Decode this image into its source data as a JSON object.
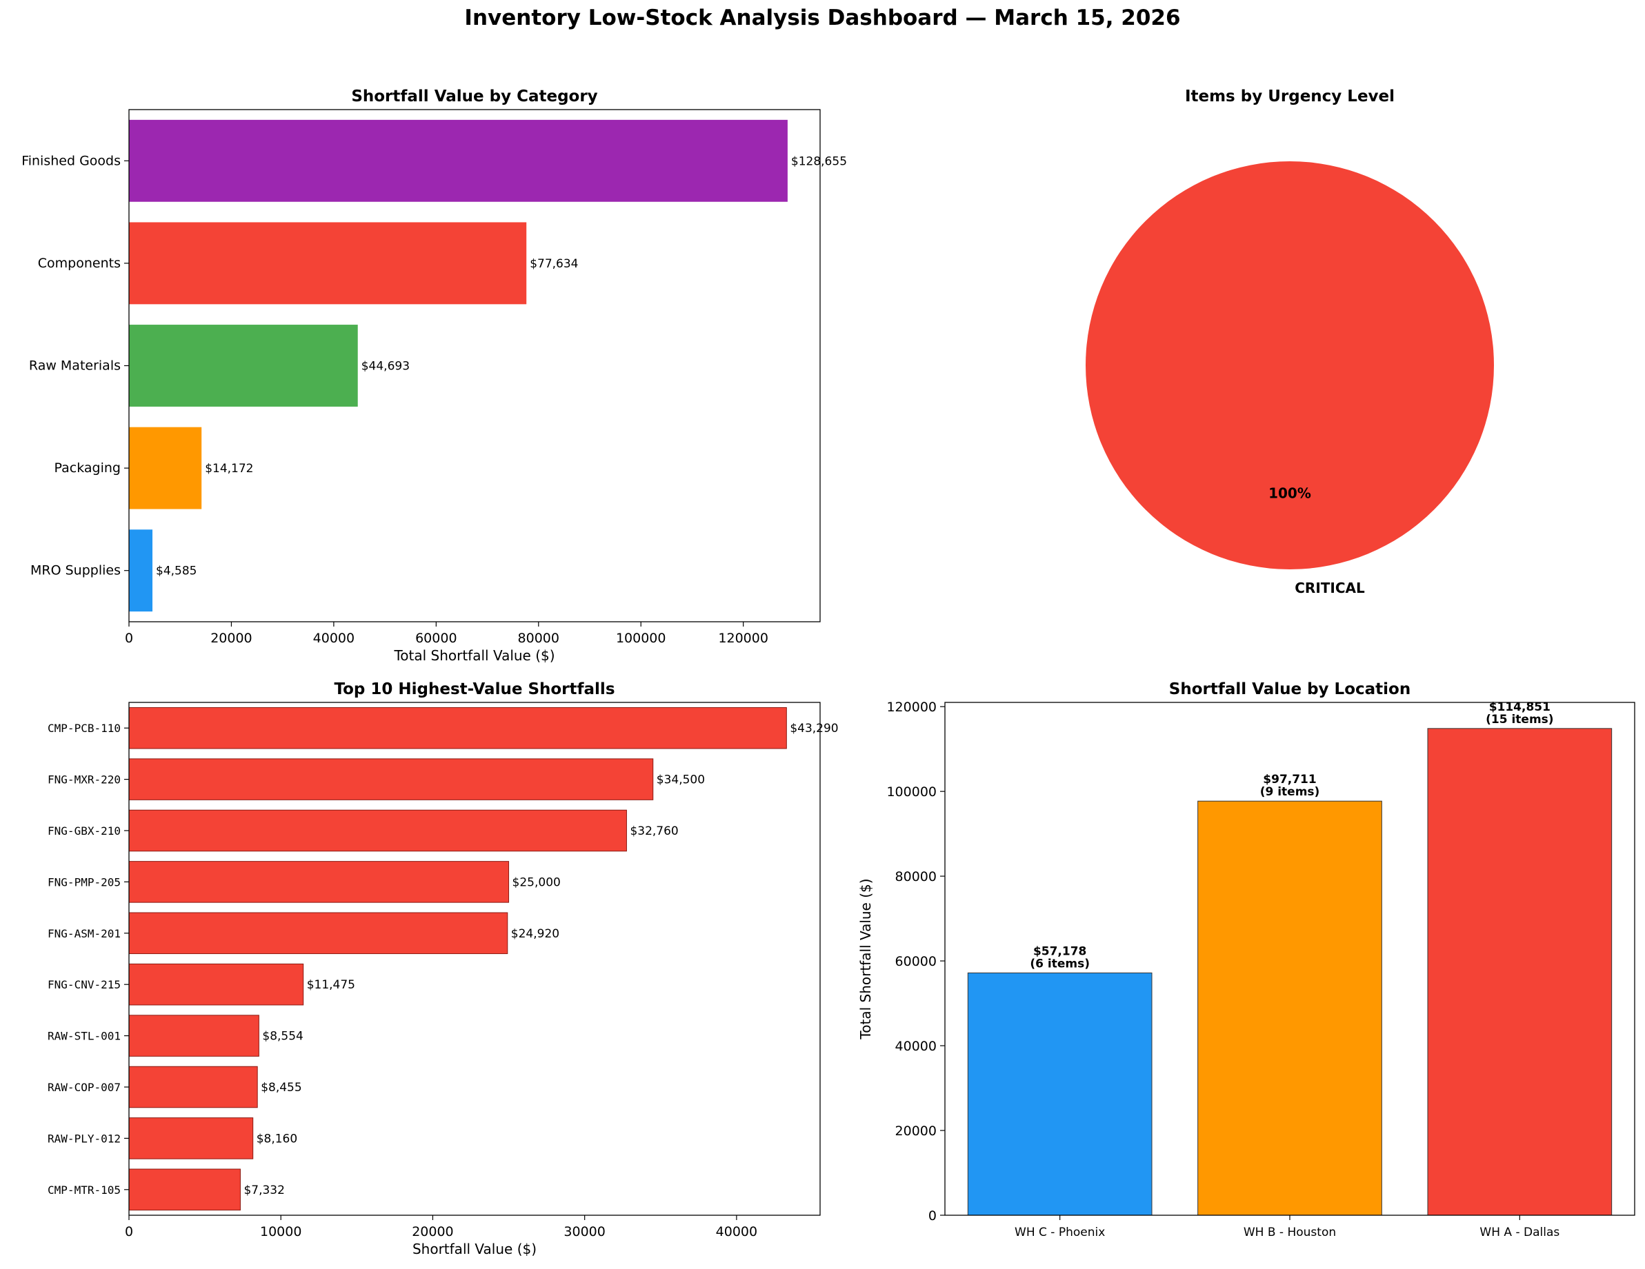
{
  "title": "Inventory Low-Stock Analysis Dashboard — March 15, 2026",
  "chart_data": [
    {
      "type": "bar",
      "orientation": "horizontal",
      "title": "Shortfall Value by Category",
      "xlabel": "Total Shortfall Value ($)",
      "ylabel": "",
      "xlim": [
        0,
        135000
      ],
      "xticks": [
        "0",
        "20000",
        "40000",
        "60000",
        "80000",
        "100000",
        "120000"
      ],
      "categories": [
        "Finished Goods",
        "Components",
        "Raw Materials",
        "Packaging",
        "MRO Supplies"
      ],
      "values": [
        128655,
        77634,
        44693,
        14172,
        4585
      ],
      "labels": [
        "$128,655",
        "$77,634",
        "$44,693",
        "$14,172",
        "$4,585"
      ],
      "colors": [
        "#9C27B0",
        "#F44336",
        "#4CAF50",
        "#FF9800",
        "#2196F3"
      ]
    },
    {
      "type": "pie",
      "title": "Items by Urgency Level",
      "categories": [
        "CRITICAL"
      ],
      "values": [
        100
      ],
      "pct_labels": [
        "100%"
      ],
      "colors": [
        "#F44336"
      ]
    },
    {
      "type": "bar",
      "orientation": "horizontal",
      "title": "Top 10 Highest-Value Shortfalls",
      "xlabel": "Shortfall Value ($)",
      "ylabel": "",
      "xlim": [
        0,
        45500
      ],
      "xticks": [
        "0",
        "10000",
        "20000",
        "30000",
        "40000"
      ],
      "categories": [
        "CMP-PCB-110",
        "FNG-MXR-220",
        "FNG-GBX-210",
        "FNG-PMP-205",
        "FNG-ASM-201",
        "FNG-CNV-215",
        "RAW-STL-001",
        "RAW-COP-007",
        "RAW-PLY-012",
        "CMP-MTR-105"
      ],
      "values": [
        43290,
        34500,
        32760,
        25000,
        24920,
        11475,
        8554,
        8455,
        8160,
        7332
      ],
      "labels": [
        "$43,290",
        "$34,500",
        "$32,760",
        "$25,000",
        "$24,920",
        "$11,475",
        "$8,554",
        "$8,455",
        "$8,160",
        "$7,332"
      ],
      "colors": [
        "#F44336"
      ]
    },
    {
      "type": "bar",
      "orientation": "vertical",
      "title": "Shortfall Value by Location",
      "xlabel": "",
      "ylabel": "Total Shortfall Value ($)",
      "ylim": [
        0,
        121000
      ],
      "yticks": [
        "0",
        "20000",
        "40000",
        "60000",
        "80000",
        "100000",
        "120000"
      ],
      "categories": [
        "WH C - Phoenix",
        "WH B - Houston",
        "WH A - Dallas"
      ],
      "values": [
        57178,
        97711,
        114851
      ],
      "value_labels": [
        "$57,178",
        "$97,711",
        "$114,851"
      ],
      "count_labels": [
        "(6 items)",
        "(9 items)",
        "(15 items)"
      ],
      "colors": [
        "#2196F3",
        "#FF9800",
        "#F44336"
      ]
    }
  ]
}
